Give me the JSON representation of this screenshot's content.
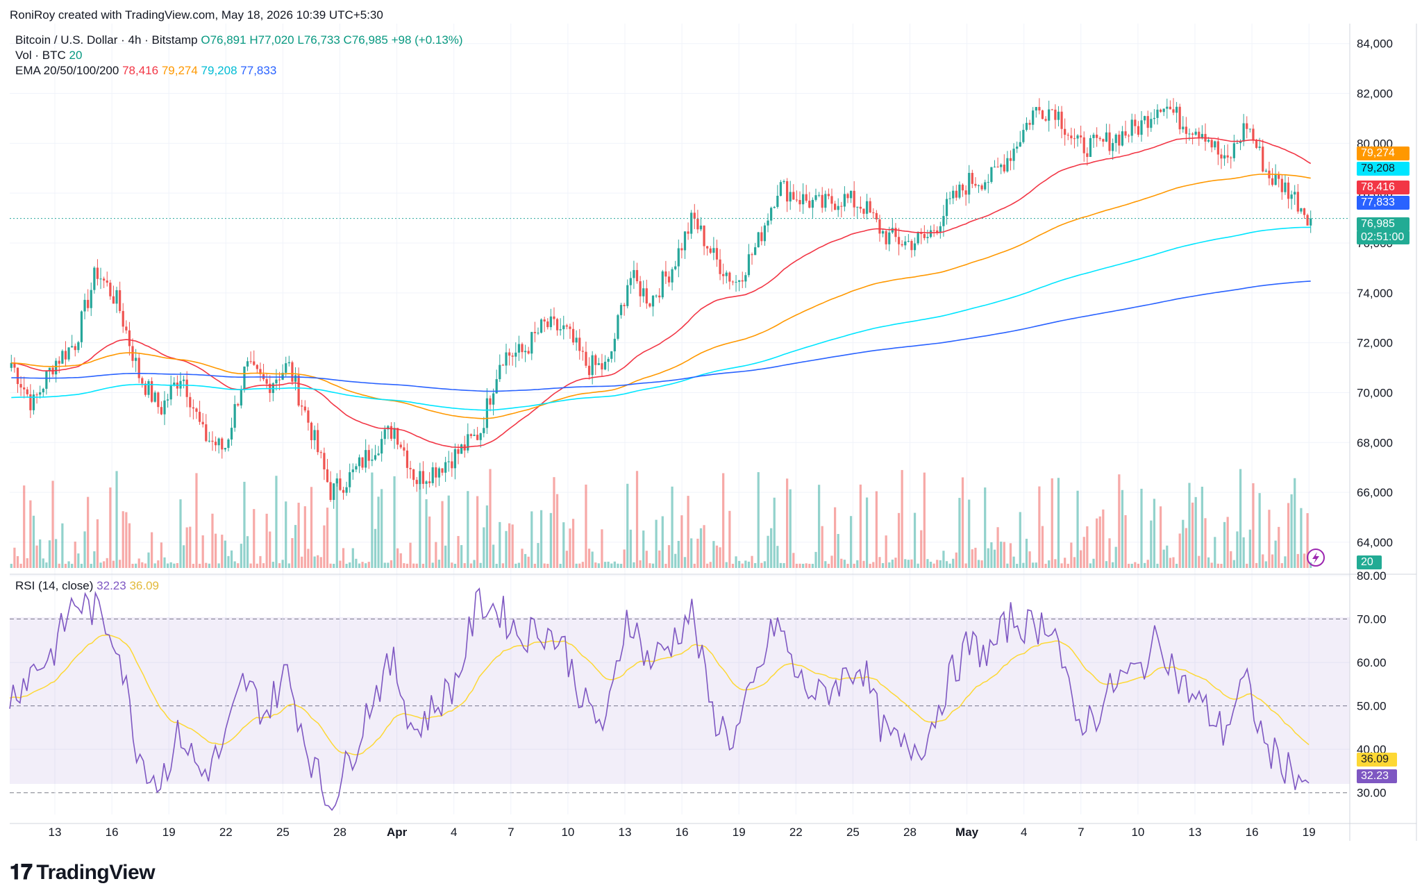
{
  "top_header": "RoniRoy created with TradingView.com, May 18, 2026 10:39 UTC+5:30",
  "legend": {
    "symbol": "Bitcoin / U.S. Dollar · 4h · Bitstamp",
    "open": "O76,891",
    "high": "H77,020",
    "low": "L76,733",
    "close": "C76,985",
    "change": "+98 (+0.13%)",
    "vol_label": "Vol · BTC",
    "vol_value": "20",
    "ema_label": "EMA 20/50/100/200",
    "ema20": "78,416",
    "ema50": "79,274",
    "ema100": "79,208",
    "ema200": "77,833",
    "rsi_label": "RSI (14, close)",
    "rsi_value": "32.23",
    "rsi_ma_value": "36.09"
  },
  "price_tags": {
    "ema50": "79,274",
    "ema100": "79,208",
    "ema20": "78,416",
    "ema200": "77,833",
    "last": "76,985",
    "countdown": "02:51:00",
    "volume": "20",
    "rsi_ma": "36.09",
    "rsi": "32.23"
  },
  "logo": "TradingView",
  "colors": {
    "up": "#26a69a",
    "down": "#ef5350",
    "ema20": "#f23645",
    "ema50": "#ff9800",
    "ema100": "#00e5ff",
    "ema200": "#2962ff",
    "rsi": "#7e57c2",
    "rsi_ma": "#fdd835"
  },
  "chart_data": {
    "type": "candlestick",
    "timeframe": "4h",
    "price_axis": {
      "ylim": [
        62800,
        84800
      ],
      "ticks": [
        "84,000",
        "82,000",
        "80,000",
        "78,000",
        "76,000",
        "74,000",
        "72,000",
        "70,000",
        "68,000",
        "66,000",
        "64,000"
      ]
    },
    "rsi_axis": {
      "ylim": [
        25,
        80
      ],
      "ticks": [
        "80.00",
        "70.00",
        "60.00",
        "50.00",
        "40.00",
        "30.00"
      ],
      "band": [
        30,
        70
      ]
    },
    "x_ticks": [
      "13",
      "16",
      "19",
      "22",
      "25",
      "28",
      "Apr",
      "4",
      "7",
      "10",
      "13",
      "16",
      "19",
      "22",
      "25",
      "28",
      "May",
      "4",
      "7",
      "10",
      "13",
      "16",
      "19"
    ],
    "close_path": [
      {
        "date": "Mar 11",
        "close": 71200
      },
      {
        "date": "Mar 12",
        "close": 69500
      },
      {
        "date": "Mar 14",
        "close": 71200
      },
      {
        "date": "Mar 16",
        "close": 72000
      },
      {
        "date": "Mar 17",
        "close": 74900
      },
      {
        "date": "Mar 18",
        "close": 73600
      },
      {
        "date": "Mar 19",
        "close": 70700
      },
      {
        "date": "Mar 20",
        "close": 69300
      },
      {
        "date": "Mar 21",
        "close": 70800
      },
      {
        "date": "Mar 22",
        "close": 68300
      },
      {
        "date": "Mar 23",
        "close": 67700
      },
      {
        "date": "Mar 24",
        "close": 71000
      },
      {
        "date": "Mar 25",
        "close": 70300
      },
      {
        "date": "Mar 26",
        "close": 71100
      },
      {
        "date": "Mar 27",
        "close": 68700
      },
      {
        "date": "Mar 28",
        "close": 66000
      },
      {
        "date": "Mar 30",
        "close": 66700
      },
      {
        "date": "Apr 1",
        "close": 67800
      },
      {
        "date": "Apr 2",
        "close": 68600
      },
      {
        "date": "Apr 3",
        "close": 66500
      },
      {
        "date": "Apr 4",
        "close": 67000
      },
      {
        "date": "Apr 6",
        "close": 67600
      },
      {
        "date": "Apr 7",
        "close": 68400
      },
      {
        "date": "Apr 8",
        "close": 71500
      },
      {
        "date": "Apr 9",
        "close": 71600
      },
      {
        "date": "Apr 10",
        "close": 72700
      },
      {
        "date": "Apr 11",
        "close": 72500
      },
      {
        "date": "Apr 12",
        "close": 71100
      },
      {
        "date": "Apr 13",
        "close": 71000
      },
      {
        "date": "Apr 14",
        "close": 74700
      },
      {
        "date": "Apr 15",
        "close": 73700
      },
      {
        "date": "Apr 17",
        "close": 75000
      },
      {
        "date": "Apr 18",
        "close": 77000
      },
      {
        "date": "Apr 19",
        "close": 75400
      },
      {
        "date": "Apr 20",
        "close": 74400
      },
      {
        "date": "Apr 21",
        "close": 75900
      },
      {
        "date": "Apr 22",
        "close": 78300
      },
      {
        "date": "Apr 24",
        "close": 77800
      },
      {
        "date": "Apr 25",
        "close": 77500
      },
      {
        "date": "Apr 26",
        "close": 77800
      },
      {
        "date": "Apr 27",
        "close": 77500
      },
      {
        "date": "Apr 28",
        "close": 76300
      },
      {
        "date": "Apr 29",
        "close": 76000
      },
      {
        "date": "Apr 30",
        "close": 76200
      },
      {
        "date": "May 1",
        "close": 77500
      },
      {
        "date": "May 2",
        "close": 78500
      },
      {
        "date": "May 3",
        "close": 78600
      },
      {
        "date": "May 4",
        "close": 79700
      },
      {
        "date": "May 5",
        "close": 81300
      },
      {
        "date": "May 6",
        "close": 81400
      },
      {
        "date": "May 7",
        "close": 79900
      },
      {
        "date": "May 8",
        "close": 79900
      },
      {
        "date": "May 9",
        "close": 80300
      },
      {
        "date": "May 10",
        "close": 80700
      },
      {
        "date": "May 11",
        "close": 81700
      },
      {
        "date": "May 12",
        "close": 80800
      },
      {
        "date": "May 13",
        "close": 80500
      },
      {
        "date": "May 14",
        "close": 79100
      },
      {
        "date": "May 15",
        "close": 80800
      },
      {
        "date": "May 16",
        "close": 78700
      },
      {
        "date": "May 17",
        "close": 78100
      },
      {
        "date": "May 18",
        "close": 76985
      }
    ],
    "ema": [
      {
        "name": "EMA 20",
        "last": 78416
      },
      {
        "name": "EMA 50",
        "last": 79274
      },
      {
        "name": "EMA 100",
        "last": 79208
      },
      {
        "name": "EMA 200",
        "last": 77833
      }
    ],
    "rsi_path": [
      {
        "date": "Mar 11",
        "rsi": 52
      },
      {
        "date": "Mar 13",
        "rsi": 58
      },
      {
        "date": "Mar 15",
        "rsi": 62
      },
      {
        "date": "Mar 16",
        "rsi": 74
      },
      {
        "date": "Mar 17",
        "rsi": 72
      },
      {
        "date": "Mar 18",
        "rsi": 66
      },
      {
        "date": "Mar 19",
        "rsi": 40
      },
      {
        "date": "Mar 20",
        "rsi": 32
      },
      {
        "date": "Mar 21",
        "rsi": 44
      },
      {
        "date": "Mar 22",
        "rsi": 34
      },
      {
        "date": "Mar 23",
        "rsi": 40
      },
      {
        "date": "Mar 24",
        "rsi": 56
      },
      {
        "date": "Mar 25",
        "rsi": 48
      },
      {
        "date": "Mar 26",
        "rsi": 58
      },
      {
        "date": "Mar 27",
        "rsi": 40
      },
      {
        "date": "Mar 28",
        "rsi": 27
      },
      {
        "date": "Mar 30",
        "rsi": 38
      },
      {
        "date": "Apr 1",
        "rsi": 52
      },
      {
        "date": "Apr 2",
        "rsi": 60
      },
      {
        "date": "Apr 3",
        "rsi": 44
      },
      {
        "date": "Apr 4",
        "rsi": 50
      },
      {
        "date": "Apr 6",
        "rsi": 56
      },
      {
        "date": "Apr 7",
        "rsi": 74
      },
      {
        "date": "Apr 8",
        "rsi": 72
      },
      {
        "date": "Apr 9",
        "rsi": 66
      },
      {
        "date": "Apr 10",
        "rsi": 68
      },
      {
        "date": "Apr 11",
        "rsi": 64
      },
      {
        "date": "Apr 12",
        "rsi": 50
      },
      {
        "date": "Apr 13",
        "rsi": 45
      },
      {
        "date": "Apr 14",
        "rsi": 72
      },
      {
        "date": "Apr 15",
        "rsi": 60
      },
      {
        "date": "Apr 17",
        "rsi": 64
      },
      {
        "date": "Apr 18",
        "rsi": 72
      },
      {
        "date": "Apr 19",
        "rsi": 48
      },
      {
        "date": "Apr 20",
        "rsi": 42
      },
      {
        "date": "Apr 21",
        "rsi": 55
      },
      {
        "date": "Apr 22",
        "rsi": 70
      },
      {
        "date": "Apr 24",
        "rsi": 56
      },
      {
        "date": "Apr 25",
        "rsi": 52
      },
      {
        "date": "Apr 26",
        "rsi": 56
      },
      {
        "date": "Apr 27",
        "rsi": 60
      },
      {
        "date": "Apr 28",
        "rsi": 44
      },
      {
        "date": "Apr 29",
        "rsi": 40
      },
      {
        "date": "Apr 30",
        "rsi": 42
      },
      {
        "date": "May 1",
        "rsi": 55
      },
      {
        "date": "May 2",
        "rsi": 64
      },
      {
        "date": "May 3",
        "rsi": 62
      },
      {
        "date": "May 4",
        "rsi": 70
      },
      {
        "date": "May 5",
        "rsi": 68
      },
      {
        "date": "May 6",
        "rsi": 70
      },
      {
        "date": "May 7",
        "rsi": 46
      },
      {
        "date": "May 8",
        "rsi": 48
      },
      {
        "date": "May 9",
        "rsi": 56
      },
      {
        "date": "May 10",
        "rsi": 58
      },
      {
        "date": "May 11",
        "rsi": 66
      },
      {
        "date": "May 12",
        "rsi": 55
      },
      {
        "date": "May 13",
        "rsi": 50
      },
      {
        "date": "May 14",
        "rsi": 44
      },
      {
        "date": "May 15",
        "rsi": 56
      },
      {
        "date": "May 16",
        "rsi": 40
      },
      {
        "date": "May 17",
        "rsi": 36
      },
      {
        "date": "May 18",
        "rsi": 32.23
      }
    ]
  }
}
